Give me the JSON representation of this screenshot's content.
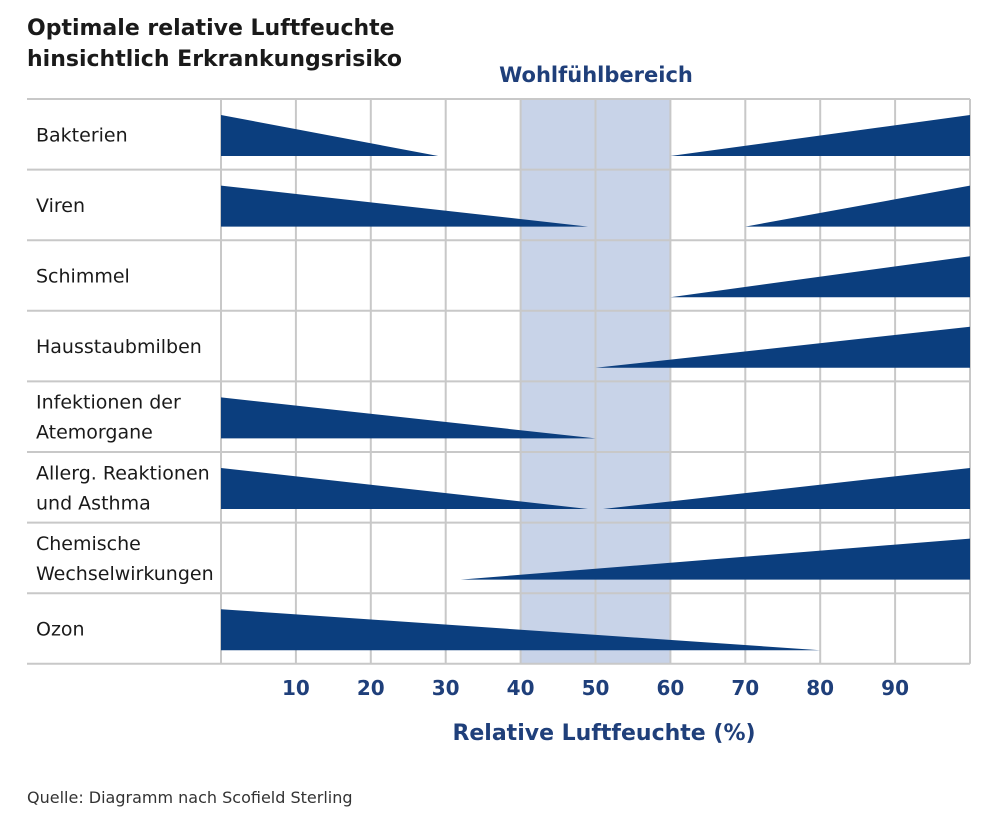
{
  "chart_data": {
    "type": "bar",
    "title_lines": [
      "Optimale relative Luftfeuchte",
      "hinsichtlich Erkrankungsrisiko"
    ],
    "xlabel": "Relative Luftfeuchte (%)",
    "xlim": [
      0,
      100
    ],
    "xticks": [
      10,
      20,
      30,
      40,
      50,
      60,
      70,
      80,
      90
    ],
    "comfort_zone": {
      "label": "Wohlfühlbereich",
      "range": [
        40,
        60
      ]
    },
    "grid": true,
    "source": "Quelle: Diagramm nach Scofield Sterling",
    "colors": {
      "shape": "#0b3e7e",
      "zone": "#c8d3e8",
      "grid": "#c8c8c8",
      "accent": "#1f3f7a"
    },
    "rows": [
      {
        "label": [
          "Bakterien"
        ],
        "decreasing": [
          0,
          29
        ],
        "increasing": [
          60,
          100
        ]
      },
      {
        "label": [
          "Viren"
        ],
        "decreasing": [
          0,
          49
        ],
        "increasing": [
          70,
          100
        ]
      },
      {
        "label": [
          "Schimmel"
        ],
        "decreasing": null,
        "increasing": [
          60,
          100
        ]
      },
      {
        "label": [
          "Hausstaubmilben"
        ],
        "decreasing": null,
        "increasing": [
          50,
          100
        ]
      },
      {
        "label": [
          "Infektionen der",
          "Atemorgane"
        ],
        "decreasing": [
          0,
          50
        ],
        "increasing": null
      },
      {
        "label": [
          "Allerg. Reaktionen",
          "und Asthma"
        ],
        "decreasing": [
          0,
          49
        ],
        "increasing": [
          51,
          100
        ]
      },
      {
        "label": [
          "Chemische",
          "Wechselwirkungen"
        ],
        "decreasing": null,
        "increasing": [
          32,
          100
        ]
      },
      {
        "label": [
          "Ozon"
        ],
        "decreasing": [
          0,
          80
        ],
        "increasing": null
      }
    ]
  }
}
